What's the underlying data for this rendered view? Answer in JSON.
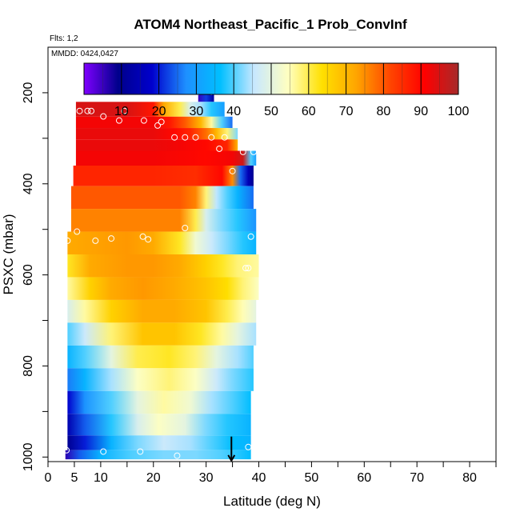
{
  "header": {
    "title": "ATOM4 Northeast_Pacific_1 Prob_ConvInf",
    "flts": "Flts: 1,2",
    "mmdd": "MMDD: 0424,0427"
  },
  "chart_data": {
    "type": "heatmap",
    "title": "ATOM4 Northeast_Pacific_1 Prob_ConvInf",
    "xlabel": "Latitude (deg N)",
    "ylabel": "PSXC (mbar)",
    "xlim": [
      0,
      85
    ],
    "ylim": [
      1010,
      100
    ],
    "x_ticks": [
      0,
      5,
      10,
      20,
      30,
      40,
      50,
      60,
      70,
      80
    ],
    "x_tick_labels": [
      "0",
      "5",
      "10",
      "20",
      "30",
      "40",
      "50",
      "60",
      "70",
      "80"
    ],
    "y_ticks": [
      200,
      400,
      600,
      800,
      1000
    ],
    "y_tick_labels": [
      "200",
      "400",
      "600",
      "800",
      "1000"
    ],
    "colorbar": {
      "range": [
        0,
        100
      ],
      "ticks": [
        10,
        20,
        30,
        40,
        50,
        60,
        70,
        80,
        90,
        100
      ],
      "tick_labels": [
        "10",
        "20",
        "30",
        "40",
        "50",
        "60",
        "70",
        "80",
        "90",
        "100"
      ],
      "palette": [
        "#7f00ff",
        "#00008b",
        "#0000cd",
        "#1e90ff",
        "#00bfff",
        "#c8e8ff",
        "#ffffc0",
        "#ffe000",
        "#ffa500",
        "#ff4500",
        "#ff0000",
        "#a52a2a"
      ]
    },
    "rows": [
      {
        "p": 200,
        "lat_min": 28.5,
        "lat_max": 31.5,
        "values": [
          [
            28.5,
            5
          ],
          [
            30,
            22
          ],
          [
            31.5,
            12
          ]
        ]
      },
      {
        "p": 240,
        "lat_min": 5.3,
        "lat_max": 33.5,
        "values": [
          [
            5.3,
            95
          ],
          [
            15,
            95
          ],
          [
            20,
            88
          ],
          [
            22,
            72
          ],
          [
            25,
            60
          ],
          [
            27,
            48
          ],
          [
            29,
            44
          ],
          [
            31,
            38
          ],
          [
            33.5,
            30
          ]
        ]
      },
      {
        "p": 265,
        "lat_min": 5.3,
        "lat_max": 35,
        "values": [
          [
            5.3,
            92
          ],
          [
            15,
            92
          ],
          [
            20,
            92
          ],
          [
            23,
            88
          ],
          [
            26,
            80
          ],
          [
            29,
            70
          ],
          [
            31,
            56
          ],
          [
            33,
            40
          ],
          [
            35,
            25
          ]
        ]
      },
      {
        "p": 290,
        "lat_min": 5.3,
        "lat_max": 36,
        "values": [
          [
            5.3,
            93
          ],
          [
            20,
            93
          ],
          [
            24,
            90
          ],
          [
            27,
            86
          ],
          [
            30,
            78
          ],
          [
            32,
            70
          ],
          [
            34,
            58
          ],
          [
            36,
            42
          ]
        ]
      },
      {
        "p": 315,
        "lat_min": 5.3,
        "lat_max": 36,
        "values": [
          [
            5.3,
            93
          ],
          [
            20,
            93
          ],
          [
            25,
            92
          ],
          [
            30,
            90
          ],
          [
            32,
            88
          ],
          [
            34,
            86
          ],
          [
            36,
            70
          ]
        ]
      },
      {
        "p": 340,
        "lat_min": 5.3,
        "lat_max": 39.5,
        "values": [
          [
            5.3,
            92
          ],
          [
            20,
            92
          ],
          [
            30,
            90
          ],
          [
            35,
            92
          ],
          [
            37,
            96
          ],
          [
            38.5,
            40
          ],
          [
            39.5,
            30
          ]
        ]
      },
      {
        "p": 380,
        "lat_min": 4.8,
        "lat_max": 39,
        "values": [
          [
            4.8,
            86
          ],
          [
            20,
            86
          ],
          [
            28,
            85
          ],
          [
            31,
            88
          ],
          [
            33,
            90
          ],
          [
            35,
            75
          ],
          [
            36.5,
            25
          ],
          [
            38,
            15
          ],
          [
            39,
            10
          ]
        ]
      },
      {
        "p": 430,
        "lat_min": 4.4,
        "lat_max": 39,
        "values": [
          [
            4.4,
            80
          ],
          [
            20,
            80
          ],
          [
            25,
            80
          ],
          [
            28,
            76
          ],
          [
            30,
            58
          ],
          [
            32,
            45
          ],
          [
            34,
            40
          ],
          [
            36,
            34
          ],
          [
            39,
            25
          ]
        ]
      },
      {
        "p": 480,
        "lat_min": 4.4,
        "lat_max": 39.5,
        "values": [
          [
            4.4,
            76
          ],
          [
            18,
            76
          ],
          [
            25,
            76
          ],
          [
            28,
            60
          ],
          [
            30,
            48
          ],
          [
            33,
            42
          ],
          [
            36,
            38
          ],
          [
            39.5,
            28
          ]
        ]
      },
      {
        "p": 530,
        "lat_min": 3.7,
        "lat_max": 39.5,
        "values": [
          [
            3.7,
            72
          ],
          [
            15,
            74
          ],
          [
            20,
            72
          ],
          [
            25,
            62
          ],
          [
            28,
            52
          ],
          [
            31,
            46
          ],
          [
            34,
            42
          ],
          [
            37,
            38
          ],
          [
            39.5,
            34
          ]
        ]
      },
      {
        "p": 580,
        "lat_min": 3.7,
        "lat_max": 40,
        "values": [
          [
            3.7,
            62
          ],
          [
            8,
            72
          ],
          [
            15,
            74
          ],
          [
            20,
            74
          ],
          [
            25,
            72
          ],
          [
            30,
            66
          ],
          [
            33,
            62
          ],
          [
            36,
            58
          ],
          [
            40,
            56
          ]
        ]
      },
      {
        "p": 630,
        "lat_min": 3.7,
        "lat_max": 40,
        "values": [
          [
            3.7,
            56
          ],
          [
            8,
            66
          ],
          [
            12,
            72
          ],
          [
            18,
            74
          ],
          [
            24,
            72
          ],
          [
            30,
            68
          ],
          [
            34,
            64
          ],
          [
            37,
            58
          ],
          [
            40,
            54
          ]
        ]
      },
      {
        "p": 680,
        "lat_min": 3.7,
        "lat_max": 39.5,
        "values": [
          [
            3.7,
            48
          ],
          [
            7,
            56
          ],
          [
            12,
            66
          ],
          [
            18,
            72
          ],
          [
            24,
            72
          ],
          [
            30,
            68
          ],
          [
            34,
            60
          ],
          [
            37,
            55
          ],
          [
            39.5,
            50
          ]
        ]
      },
      {
        "p": 730,
        "lat_min": 3.7,
        "lat_max": 39.5,
        "values": [
          [
            3.7,
            40
          ],
          [
            7,
            46
          ],
          [
            12,
            58
          ],
          [
            18,
            68
          ],
          [
            24,
            68
          ],
          [
            29,
            62
          ],
          [
            33,
            56
          ],
          [
            36,
            50
          ],
          [
            39.5,
            44
          ]
        ]
      },
      {
        "p": 780,
        "lat_min": 3.7,
        "lat_max": 39,
        "values": [
          [
            3.7,
            34
          ],
          [
            7,
            40
          ],
          [
            12,
            50
          ],
          [
            17,
            60
          ],
          [
            23,
            62
          ],
          [
            28,
            58
          ],
          [
            32,
            50
          ],
          [
            36,
            44
          ],
          [
            39,
            40
          ]
        ]
      },
      {
        "p": 830,
        "lat_min": 3.7,
        "lat_max": 39,
        "values": [
          [
            3.7,
            26
          ],
          [
            7,
            34
          ],
          [
            12,
            44
          ],
          [
            17,
            54
          ],
          [
            23,
            58
          ],
          [
            28,
            54
          ],
          [
            32,
            46
          ],
          [
            35,
            42
          ],
          [
            39,
            38
          ]
        ]
      },
      {
        "p": 880,
        "lat_min": 3.7,
        "lat_max": 38.5,
        "values": [
          [
            3.7,
            18
          ],
          [
            7,
            28
          ],
          [
            12,
            40
          ],
          [
            17,
            50
          ],
          [
            22,
            56
          ],
          [
            27,
            52
          ],
          [
            31,
            44
          ],
          [
            35,
            40
          ],
          [
            38.5,
            36
          ]
        ]
      },
      {
        "p": 930,
        "lat_min": 3.7,
        "lat_max": 38.5,
        "values": [
          [
            3.7,
            14
          ],
          [
            7,
            24
          ],
          [
            12,
            38
          ],
          [
            17,
            48
          ],
          [
            21,
            54
          ],
          [
            26,
            50
          ],
          [
            30,
            42
          ],
          [
            34,
            38
          ],
          [
            38.5,
            34
          ]
        ]
      },
      {
        "p": 975,
        "lat_min": 3.7,
        "lat_max": 38.5,
        "values": [
          [
            3.7,
            10
          ],
          [
            7,
            20
          ],
          [
            12,
            34
          ],
          [
            17,
            42
          ],
          [
            22,
            46
          ],
          [
            27,
            44
          ],
          [
            31,
            40
          ],
          [
            35,
            36
          ],
          [
            38.5,
            34
          ]
        ]
      },
      {
        "p": 995,
        "lat_min": 3.3,
        "lat_max": 38.5,
        "values": [
          [
            3.3,
            6
          ],
          [
            6,
            24
          ],
          [
            10,
            34
          ],
          [
            16,
            40
          ],
          [
            22,
            42
          ],
          [
            28,
            42
          ],
          [
            33,
            40
          ],
          [
            38.5,
            36
          ]
        ]
      }
    ],
    "markers": [
      [
        28.5,
        198
      ],
      [
        31,
        198
      ],
      [
        6,
        240
      ],
      [
        7.5,
        240
      ],
      [
        8.2,
        240
      ],
      [
        14.5,
        240
      ],
      [
        10.5,
        252
      ],
      [
        13.5,
        261
      ],
      [
        18.2,
        261
      ],
      [
        21.5,
        264
      ],
      [
        20.8,
        272
      ],
      [
        24,
        298
      ],
      [
        26,
        298
      ],
      [
        28,
        298
      ],
      [
        31,
        298
      ],
      [
        33.5,
        298
      ],
      [
        32.5,
        323
      ],
      [
        37,
        330
      ],
      [
        39,
        330
      ],
      [
        35,
        372
      ],
      [
        26,
        497
      ],
      [
        5.5,
        505
      ],
      [
        3.7,
        525
      ],
      [
        9,
        525
      ],
      [
        12,
        520
      ],
      [
        18,
        516
      ],
      [
        19,
        522
      ],
      [
        38.5,
        516
      ],
      [
        37.5,
        585
      ],
      [
        38,
        585
      ],
      [
        38,
        978
      ],
      [
        10.5,
        988
      ],
      [
        17.5,
        988
      ],
      [
        24.5,
        997
      ],
      [
        3.5,
        985
      ]
    ],
    "arrow": {
      "x": 34.8,
      "p_from": 955,
      "p_to": 1008
    }
  }
}
